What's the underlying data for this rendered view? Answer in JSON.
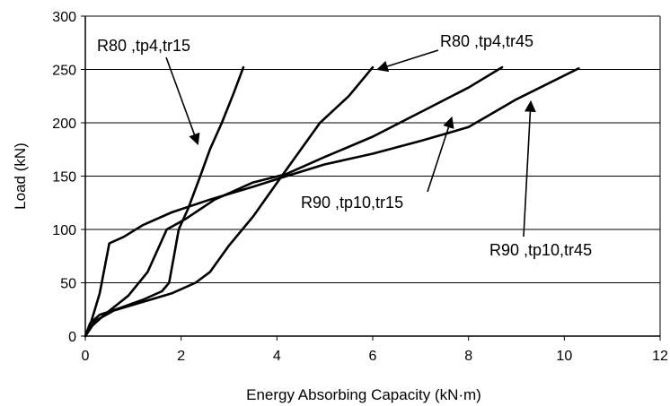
{
  "chart_data": {
    "type": "line",
    "title": "",
    "xlabel": "Energy Absorbing Capacity (kN·m)",
    "ylabel": "Load (kN)",
    "xlim": [
      0,
      12
    ],
    "ylim": [
      0,
      300
    ],
    "xticks": [
      0,
      2,
      4,
      6,
      8,
      10,
      12
    ],
    "yticks": [
      0,
      50,
      100,
      150,
      200,
      250,
      300
    ],
    "grid": "horizontal",
    "legend": "none",
    "series": [
      {
        "name": "R80 ,tp4,tr15",
        "points": [
          [
            0,
            0
          ],
          [
            0.1,
            12
          ],
          [
            0.3,
            20
          ],
          [
            0.7,
            26
          ],
          [
            1.2,
            34
          ],
          [
            1.6,
            42
          ],
          [
            1.75,
            50
          ],
          [
            1.85,
            75
          ],
          [
            1.95,
            100
          ],
          [
            2.15,
            120
          ],
          [
            2.4,
            150
          ],
          [
            2.6,
            175
          ],
          [
            2.85,
            200
          ],
          [
            3.1,
            228
          ],
          [
            3.3,
            252
          ]
        ]
      },
      {
        "name": "R80 ,tp4,tr45",
        "points": [
          [
            0,
            0
          ],
          [
            0.2,
            14
          ],
          [
            0.6,
            24
          ],
          [
            1.2,
            32
          ],
          [
            1.8,
            40
          ],
          [
            2.3,
            50
          ],
          [
            2.6,
            60
          ],
          [
            3.0,
            85
          ],
          [
            3.5,
            112
          ],
          [
            4.1,
            150
          ],
          [
            4.5,
            175
          ],
          [
            4.9,
            200
          ],
          [
            5.5,
            225
          ],
          [
            6.0,
            252
          ]
        ]
      },
      {
        "name": "R90 ,tp10,tr15",
        "points": [
          [
            0,
            0
          ],
          [
            0.15,
            10
          ],
          [
            0.4,
            20
          ],
          [
            0.9,
            38
          ],
          [
            1.3,
            60
          ],
          [
            1.7,
            100
          ],
          [
            2.1,
            110
          ],
          [
            2.7,
            128
          ],
          [
            3.5,
            144
          ],
          [
            4.2,
            152
          ],
          [
            5,
            168
          ],
          [
            6,
            187
          ],
          [
            7,
            210
          ],
          [
            8,
            233
          ],
          [
            8.7,
            252
          ]
        ]
      },
      {
        "name": "R90 ,tp10,tr45",
        "points": [
          [
            0,
            0
          ],
          [
            0.1,
            10
          ],
          [
            0.3,
            40
          ],
          [
            0.5,
            87
          ],
          [
            0.8,
            93
          ],
          [
            1.2,
            104
          ],
          [
            1.8,
            116
          ],
          [
            2.6,
            128
          ],
          [
            3.5,
            140
          ],
          [
            4.2,
            150
          ],
          [
            5,
            161
          ],
          [
            6,
            171
          ],
          [
            7,
            183
          ],
          [
            8,
            196
          ],
          [
            9,
            222
          ],
          [
            10.3,
            251
          ]
        ]
      }
    ],
    "annotations": [
      {
        "text": "R80 ,tp4,tr15",
        "arrow_to": [
          2.35,
          180
        ]
      },
      {
        "text": "R80 ,tp4,tr45",
        "arrow_to": [
          6.1,
          250
        ]
      },
      {
        "text": "R90 ,tp10,tr15",
        "arrow_to": [
          7.65,
          205
        ]
      },
      {
        "text": "R90 ,tp10,tr45",
        "arrow_to": [
          9.3,
          220
        ]
      }
    ],
    "colors": {
      "line": "#000000",
      "grid": "#000000",
      "background": "#ffffff"
    }
  }
}
